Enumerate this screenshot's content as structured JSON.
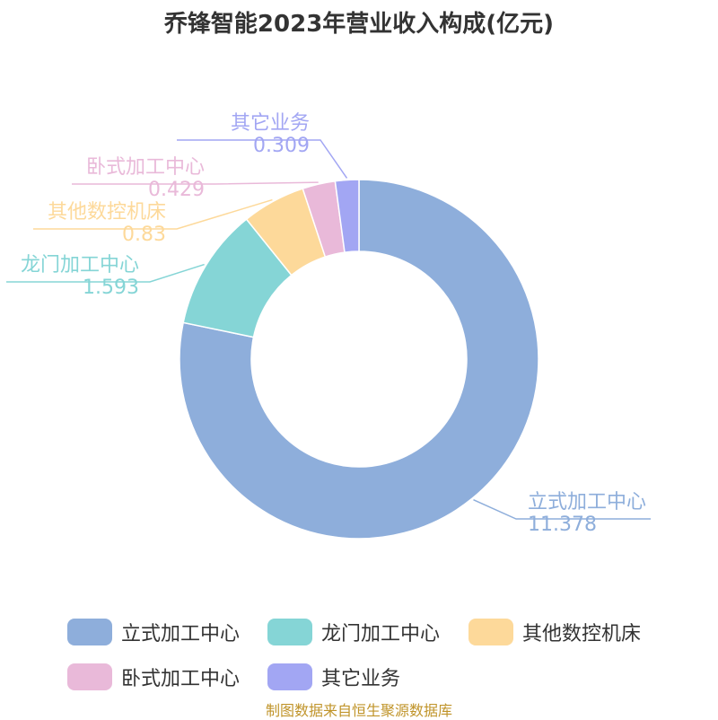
{
  "chart_data": {
    "type": "donut",
    "title": "乔锋智能2023年营业收入构成(亿元)",
    "categories": [
      "立式加工中心",
      "龙门加工中心",
      "其他数控机床",
      "卧式加工中心",
      "其它业务"
    ],
    "values": [
      11.378,
      1.593,
      0.83,
      0.429,
      0.309
    ],
    "value_labels": [
      "11.378",
      "1.593",
      "0.83",
      "0.429",
      "0.309"
    ],
    "colors": [
      "#8eaedb",
      "#85d5d6",
      "#fdd99a",
      "#e9b9d9",
      "#a2a6f3"
    ],
    "legend_position": "bottom"
  },
  "source": "制图数据来自恒生聚源数据库"
}
